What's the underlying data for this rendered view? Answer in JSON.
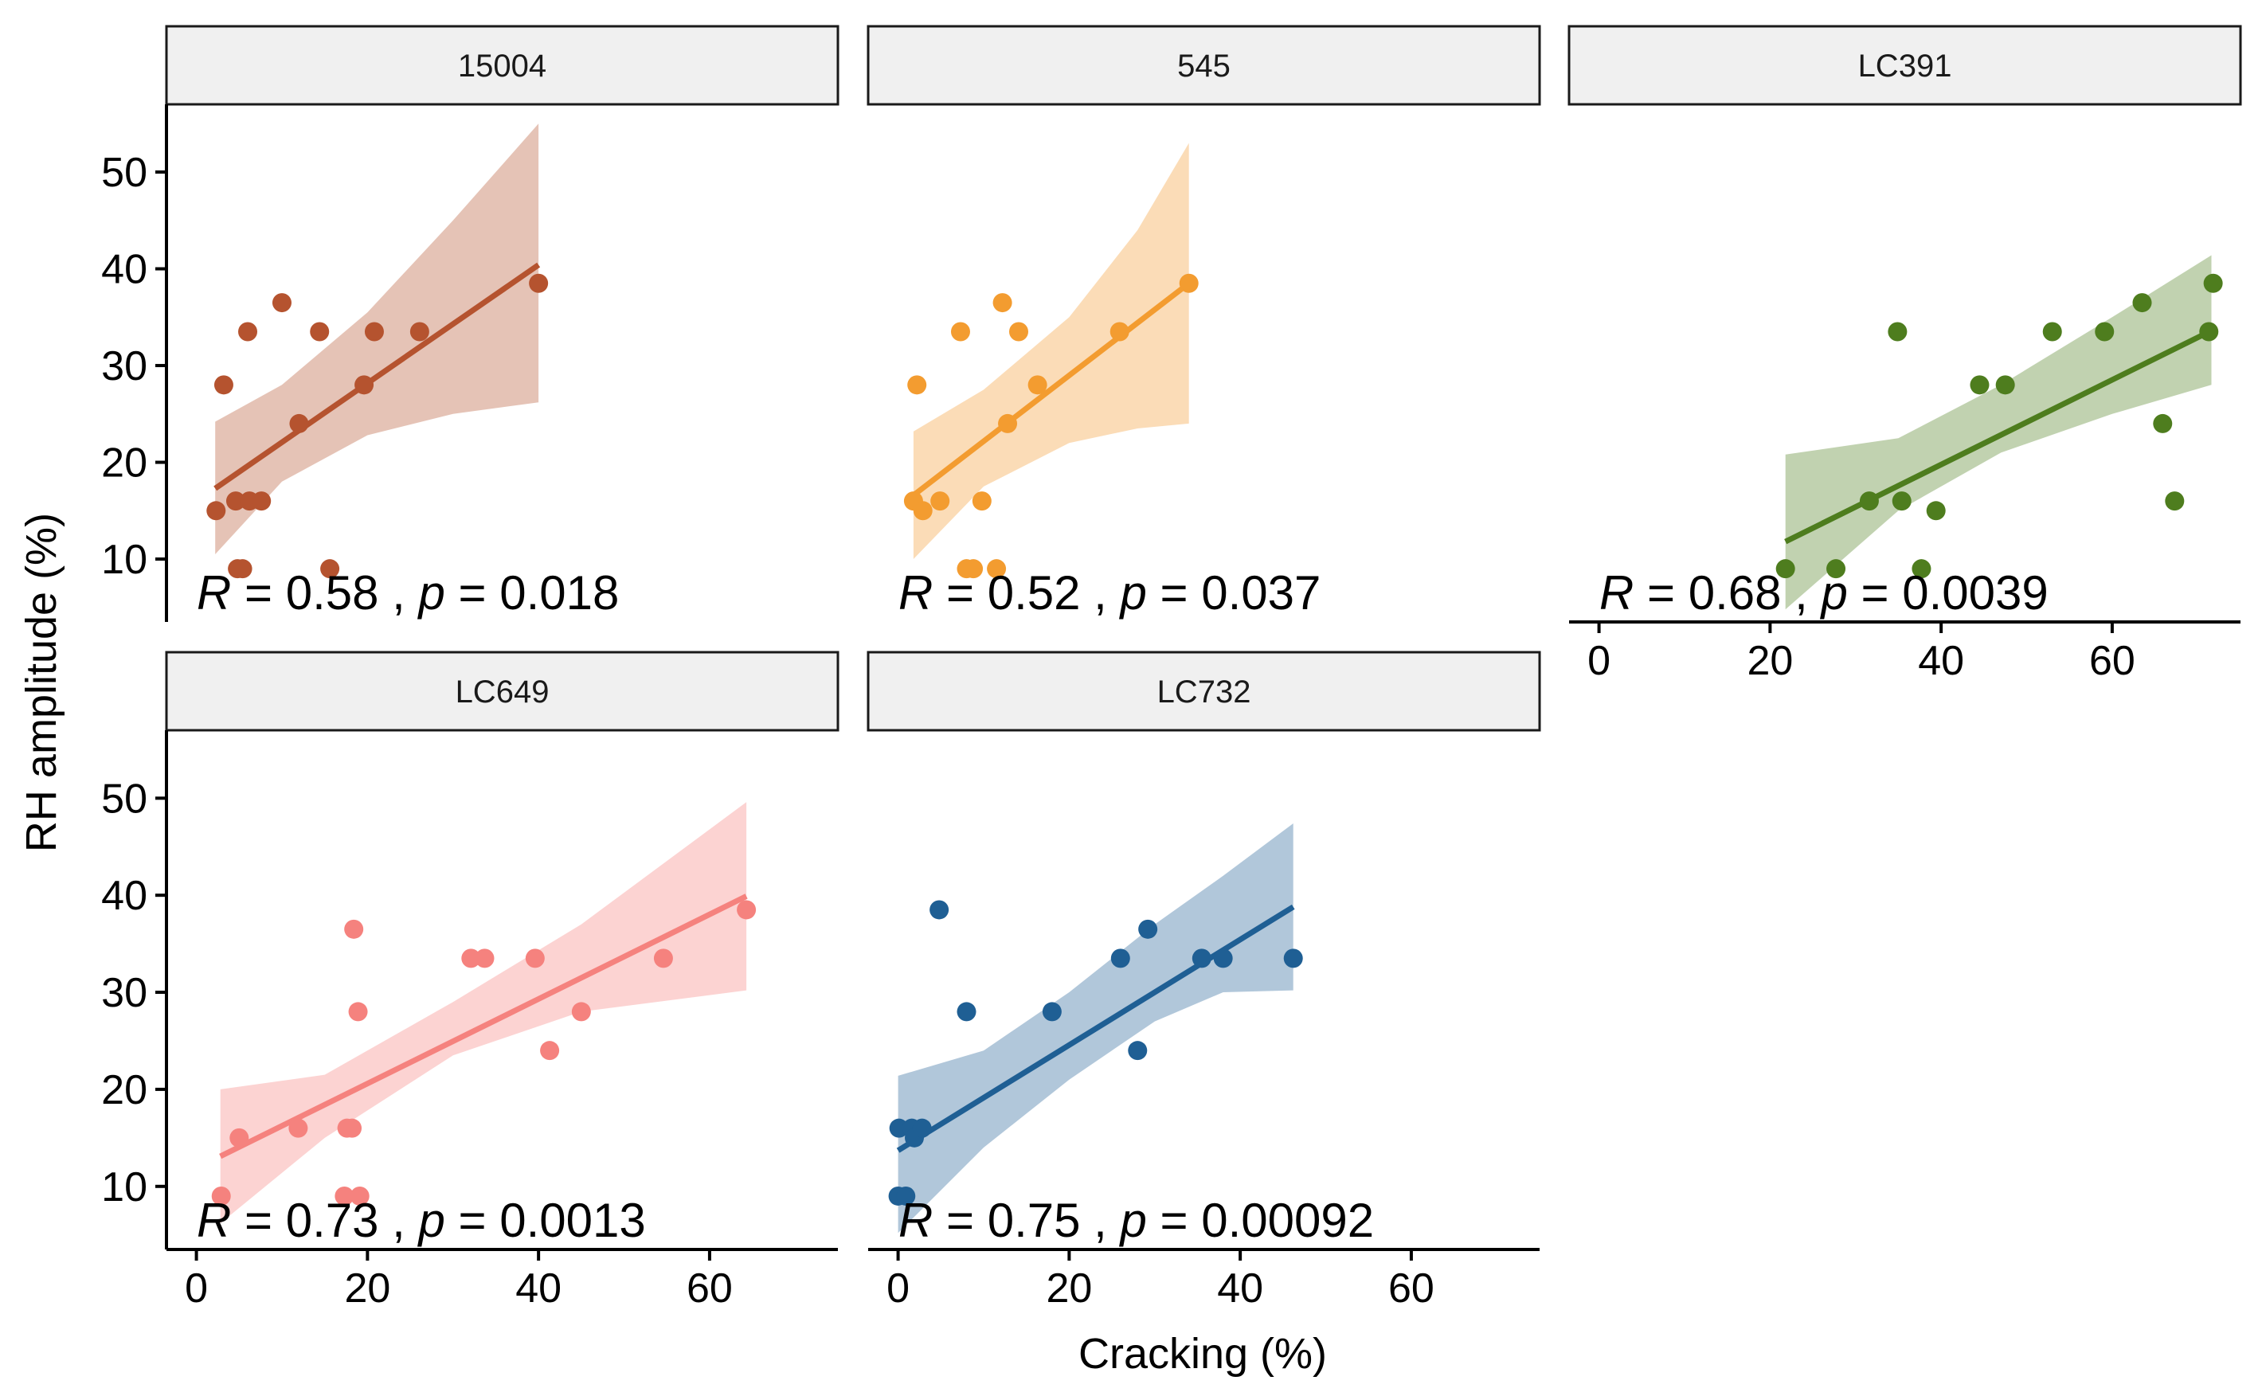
{
  "chart_data": {
    "type": "scatter",
    "xlabel": "Cracking (%)",
    "ylabel": "RH amplitude (%)",
    "x_ticks": [
      0,
      20,
      40,
      60
    ],
    "y_ticks": [
      10,
      20,
      30,
      40,
      50
    ],
    "xlim": [
      -3.5,
      75
    ],
    "ylim": [
      3.5,
      57
    ],
    "panels": [
      {
        "name": "15004",
        "color": "#b5532f",
        "annotation": {
          "r_label": "R",
          "r_value": "= 0.58 ,",
          "p_label": "p",
          "p_value": "= 0.018"
        },
        "fit": {
          "x": [
            2.2,
            40
          ],
          "y": [
            17.3,
            40.4
          ]
        },
        "band": {
          "x": [
            2.2,
            10,
            20,
            30,
            40
          ],
          "lower": [
            10.5,
            18.0,
            22.8,
            25.0,
            26.2
          ],
          "upper": [
            24.2,
            28.0,
            35.5,
            45.0,
            55.0
          ]
        },
        "points": [
          {
            "x": 2.3,
            "y": 15
          },
          {
            "x": 3.2,
            "y": 28
          },
          {
            "x": 4.6,
            "y": 16
          },
          {
            "x": 4.8,
            "y": 9
          },
          {
            "x": 5.4,
            "y": 9
          },
          {
            "x": 6.0,
            "y": 33.5
          },
          {
            "x": 6.2,
            "y": 16
          },
          {
            "x": 7.6,
            "y": 16
          },
          {
            "x": 10.0,
            "y": 36.5
          },
          {
            "x": 12.0,
            "y": 24
          },
          {
            "x": 14.4,
            "y": 33.5
          },
          {
            "x": 15.6,
            "y": 9
          },
          {
            "x": 19.6,
            "y": 28
          },
          {
            "x": 20.8,
            "y": 33.5
          },
          {
            "x": 26.1,
            "y": 33.5
          },
          {
            "x": 40.0,
            "y": 38.5
          }
        ]
      },
      {
        "name": "545",
        "color": "#f39c30",
        "annotation": {
          "r_label": "R",
          "r_value": "= 0.52 ,",
          "p_label": "p",
          "p_value": "= 0.037"
        },
        "fit": {
          "x": [
            1.8,
            34
          ],
          "y": [
            16.6,
            38.5
          ]
        },
        "band": {
          "x": [
            1.8,
            10,
            20,
            28,
            34
          ],
          "lower": [
            10.0,
            17.5,
            22.0,
            23.5,
            24.0
          ],
          "upper": [
            23.2,
            27.5,
            35.0,
            44.0,
            53.0
          ]
        },
        "points": [
          {
            "x": 1.8,
            "y": 16
          },
          {
            "x": 2.2,
            "y": 28
          },
          {
            "x": 2.9,
            "y": 15
          },
          {
            "x": 4.9,
            "y": 16
          },
          {
            "x": 7.3,
            "y": 33.5
          },
          {
            "x": 8.0,
            "y": 9
          },
          {
            "x": 8.8,
            "y": 9
          },
          {
            "x": 9.8,
            "y": 16
          },
          {
            "x": 11.5,
            "y": 9
          },
          {
            "x": 12.2,
            "y": 36.5
          },
          {
            "x": 12.8,
            "y": 24
          },
          {
            "x": 14.1,
            "y": 33.5
          },
          {
            "x": 16.3,
            "y": 28
          },
          {
            "x": 25.9,
            "y": 33.5
          },
          {
            "x": 34.0,
            "y": 38.5
          }
        ]
      },
      {
        "name": "LC391",
        "color": "#4e7d1e",
        "annotation": {
          "r_label": "R",
          "r_value": "= 0.68 ,",
          "p_label": "p",
          "p_value": "= 0.0039"
        },
        "fit": {
          "x": [
            21.8,
            71.6
          ],
          "y": [
            11.8,
            33.6
          ]
        },
        "band": {
          "x": [
            21.8,
            35,
            47,
            60,
            71.6
          ],
          "lower": [
            4.8,
            15.0,
            21.0,
            25.0,
            28.0
          ],
          "upper": [
            20.8,
            22.5,
            28.0,
            35.0,
            41.4
          ]
        },
        "points": [
          {
            "x": 21.8,
            "y": 9
          },
          {
            "x": 27.7,
            "y": 9
          },
          {
            "x": 31.6,
            "y": 16
          },
          {
            "x": 34.9,
            "y": 33.5
          },
          {
            "x": 35.4,
            "y": 16
          },
          {
            "x": 37.7,
            "y": 9
          },
          {
            "x": 39.4,
            "y": 15
          },
          {
            "x": 44.5,
            "y": 28
          },
          {
            "x": 47.5,
            "y": 28
          },
          {
            "x": 53.0,
            "y": 33.5
          },
          {
            "x": 59.1,
            "y": 33.5
          },
          {
            "x": 63.5,
            "y": 36.5
          },
          {
            "x": 65.9,
            "y": 24
          },
          {
            "x": 67.3,
            "y": 16
          },
          {
            "x": 71.3,
            "y": 33.5
          },
          {
            "x": 71.8,
            "y": 38.5
          }
        ]
      },
      {
        "name": "LC649",
        "color": "#f5827e",
        "annotation": {
          "r_label": "R",
          "r_value": "= 0.73 ,",
          "p_label": "p",
          "p_value": "= 0.0013"
        },
        "fit": {
          "x": [
            2.8,
            64.3
          ],
          "y": [
            13.1,
            39.9
          ]
        },
        "band": {
          "x": [
            2.8,
            15,
            30,
            45,
            64.3
          ],
          "lower": [
            6.2,
            15.0,
            23.5,
            28.0,
            30.2
          ],
          "upper": [
            20.0,
            21.5,
            29.0,
            37.0,
            49.6
          ]
        },
        "points": [
          {
            "x": 2.9,
            "y": 9
          },
          {
            "x": 5.0,
            "y": 15
          },
          {
            "x": 11.9,
            "y": 16
          },
          {
            "x": 17.3,
            "y": 9
          },
          {
            "x": 17.6,
            "y": 16
          },
          {
            "x": 18.2,
            "y": 16
          },
          {
            "x": 18.4,
            "y": 36.5
          },
          {
            "x": 18.9,
            "y": 28
          },
          {
            "x": 19.1,
            "y": 9
          },
          {
            "x": 32.1,
            "y": 33.5
          },
          {
            "x": 33.7,
            "y": 33.5
          },
          {
            "x": 39.6,
            "y": 33.5
          },
          {
            "x": 41.3,
            "y": 24
          },
          {
            "x": 45.0,
            "y": 28
          },
          {
            "x": 54.6,
            "y": 33.5
          },
          {
            "x": 64.3,
            "y": 38.5
          }
        ]
      },
      {
        "name": "LC732",
        "color": "#1f5f94",
        "annotation": {
          "r_label": "R",
          "r_value": "= 0.75 ,",
          "p_label": "p",
          "p_value": "= 0.00092"
        },
        "fit": {
          "x": [
            0,
            46.2
          ],
          "y": [
            13.7,
            38.8
          ]
        },
        "band": {
          "x": [
            0,
            10,
            20,
            30,
            38,
            46.2
          ],
          "lower": [
            5.2,
            14.0,
            21.0,
            27.0,
            30.0,
            30.2
          ],
          "upper": [
            21.4,
            24.0,
            30.0,
            37.0,
            42.0,
            47.4
          ]
        },
        "points": [
          {
            "x": 0.0,
            "y": 9
          },
          {
            "x": 0.1,
            "y": 16
          },
          {
            "x": 0.9,
            "y": 9
          },
          {
            "x": 1.6,
            "y": 16
          },
          {
            "x": 1.9,
            "y": 15
          },
          {
            "x": 2.8,
            "y": 16
          },
          {
            "x": 4.8,
            "y": 38.5
          },
          {
            "x": 8.0,
            "y": 28
          },
          {
            "x": 18.0,
            "y": 28
          },
          {
            "x": 26.0,
            "y": 33.5
          },
          {
            "x": 28.0,
            "y": 24
          },
          {
            "x": 29.2,
            "y": 36.5
          },
          {
            "x": 35.5,
            "y": 33.5
          },
          {
            "x": 38.0,
            "y": 33.5
          },
          {
            "x": 46.2,
            "y": 33.5
          }
        ]
      }
    ]
  }
}
